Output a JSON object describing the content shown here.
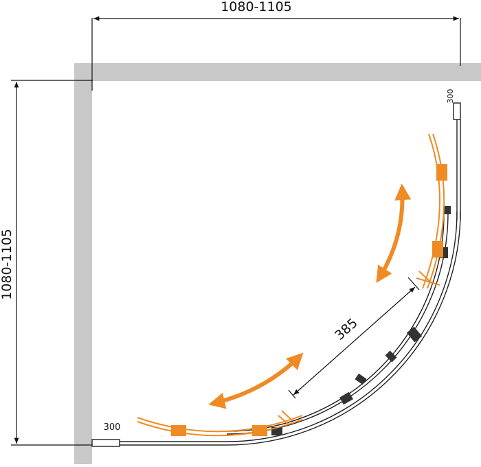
{
  "dimensions": {
    "width": "1080-1105",
    "depth": "1080-1105",
    "door_opening": "385",
    "profile_right": "300",
    "profile_bottom": "300"
  }
}
